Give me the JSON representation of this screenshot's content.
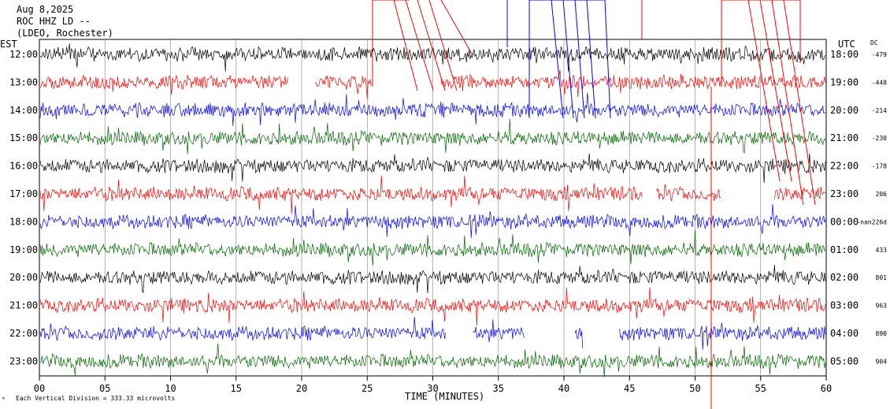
{
  "header": {
    "date": "Aug 8,2025",
    "station": "ROC HHZ LD --",
    "network": "(LDEO, Rochester)"
  },
  "axis": {
    "left_title": "EST",
    "right_title": "UTC",
    "dc_title": "DC",
    "xlabel": "TIME (MINUTES)",
    "footnote": "Each Vertical Division = 333.33 microvolts"
  },
  "colors": {
    "black": "#000000",
    "red": "#ff0000",
    "blue": "#0000ff",
    "green": "#006400",
    "grid": "#808080"
  },
  "chart_data": {
    "type": "line",
    "x_range": [
      0,
      60
    ],
    "x_ticks": [
      "00",
      "05",
      "10",
      "15",
      "20",
      "25",
      "30",
      "35",
      "40",
      "45",
      "50",
      "55",
      "60"
    ],
    "rows": [
      {
        "est": "12:00",
        "utc": "18:00",
        "dc": "-479",
        "color": "black"
      },
      {
        "est": "13:00",
        "utc": "19:00",
        "dc": "-448",
        "color": "red"
      },
      {
        "est": "14:00",
        "utc": "20:00",
        "dc": "-214",
        "color": "blue"
      },
      {
        "est": "15:00",
        "utc": "21:00",
        "dc": "-230",
        "color": "green"
      },
      {
        "est": "16:00",
        "utc": "22:00",
        "dc": "-178",
        "color": "black"
      },
      {
        "est": "17:00",
        "utc": "23:00",
        "dc": "206",
        "color": "red"
      },
      {
        "est": "18:00",
        "utc": "00:00",
        "dc": "-nan226d",
        "color": "blue"
      },
      {
        "est": "19:00",
        "utc": "01:00",
        "dc": "433",
        "color": "green"
      },
      {
        "est": "20:00",
        "utc": "02:00",
        "dc": "801",
        "color": "black"
      },
      {
        "est": "21:00",
        "utc": "03:00",
        "dc": "963",
        "color": "red"
      },
      {
        "est": "22:00",
        "utc": "04:00",
        "dc": "890",
        "color": "blue"
      },
      {
        "est": "23:00",
        "utc": "05:00",
        "dc": "904",
        "color": "green"
      }
    ]
  }
}
